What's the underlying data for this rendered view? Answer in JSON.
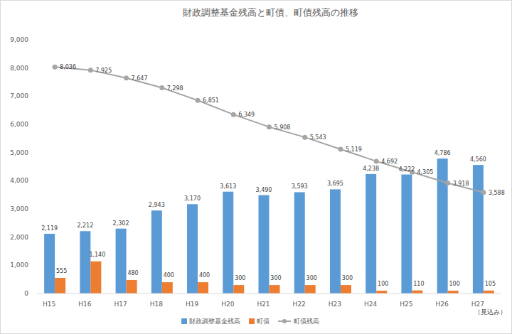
{
  "chart_data": {
    "type": "bar",
    "title": "財政調整基金残高と町債、町債残高の推移",
    "categories": [
      "H15",
      "H16",
      "H17",
      "H18",
      "H19",
      "H20",
      "H21",
      "H22",
      "H23",
      "H24",
      "H25",
      "H26",
      "H27"
    ],
    "series": [
      {
        "name": "財政調整基金残高",
        "type": "bar",
        "color": "#5b9bd5",
        "values": [
          2119,
          2212,
          2302,
          2943,
          3170,
          3613,
          3490,
          3593,
          3695,
          4238,
          4222,
          4786,
          4560
        ],
        "value_labels": [
          "2,119",
          "2,212",
          "2,302",
          "2,943",
          "3,170",
          "3,613",
          "3,490",
          "3,593",
          "3,695",
          "4,238",
          "4,222",
          "4,786",
          "4,560"
        ]
      },
      {
        "name": "町債",
        "type": "bar",
        "color": "#ed7d31",
        "values": [
          555,
          1140,
          480,
          400,
          400,
          300,
          300,
          300,
          300,
          100,
          110,
          100,
          105
        ],
        "value_labels": [
          "555",
          "1,140",
          "480",
          "400",
          "400",
          "300",
          "300",
          "300",
          "300",
          "100",
          "110",
          "100",
          "105"
        ]
      },
      {
        "name": "町債残高",
        "type": "line",
        "color": "#a5a5a5",
        "marker": "circle",
        "line_style": "solid",
        "values": [
          8036,
          7925,
          7647,
          7298,
          6851,
          6349,
          5908,
          5543,
          5119,
          4692,
          4305,
          3918,
          3588
        ],
        "value_labels": [
          "8,036",
          "7,925",
          "7,647",
          "7,298",
          "6,851",
          "6,349",
          "5,908",
          "5,543",
          "5,119",
          "4,692",
          "4,305",
          "3,918",
          "3,588"
        ]
      }
    ],
    "ylim": [
      0,
      9000
    ],
    "yticks": [
      0,
      {
        "value": 1000,
        "label": "1,000"
      },
      {
        "value": 2000,
        "label": "2,000"
      },
      {
        "value": 3000,
        "label": "3,000"
      },
      {
        "value": 4000,
        "label": "4,000"
      },
      {
        "value": 5000,
        "label": "5,000"
      },
      {
        "value": 6000,
        "label": "6,000"
      },
      {
        "value": 7000,
        "label": "7,000"
      },
      {
        "value": 8000,
        "label": "8,000"
      },
      {
        "value": 9000,
        "label": "9,000"
      }
    ],
    "grid": false,
    "legend": "bottom",
    "data_labels": true,
    "annotation": "（見込み）"
  }
}
